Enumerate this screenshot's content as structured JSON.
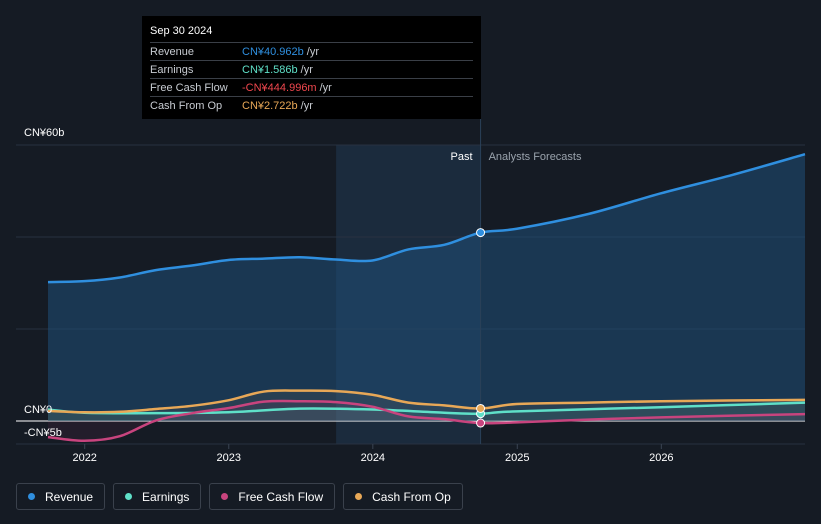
{
  "chart_data": {
    "type": "line",
    "y_top_label": "CN¥60b",
    "y_zero_label": "CN¥0",
    "y_bottom_label": "-CN¥5b",
    "ylim": [
      -5,
      60
    ],
    "x_ticks": [
      "2022",
      "2023",
      "2024",
      "2025",
      "2026"
    ],
    "period_labels": {
      "past": "Past",
      "forecast": "Analysts Forecasts"
    },
    "highlight_date": "2024-09-30",
    "series": [
      {
        "name": "Revenue",
        "color": "#2f8fdf",
        "points": [
          [
            "2021-09-30",
            30.2
          ],
          [
            "2021-12-31",
            30.4
          ],
          [
            "2022-03-31",
            31.2
          ],
          [
            "2022-06-30",
            32.8
          ],
          [
            "2022-09-30",
            33.8
          ],
          [
            "2022-12-31",
            35.0
          ],
          [
            "2023-03-31",
            35.3
          ],
          [
            "2023-06-30",
            35.6
          ],
          [
            "2023-09-30",
            35.1
          ],
          [
            "2023-12-31",
            34.9
          ],
          [
            "2024-03-31",
            37.3
          ],
          [
            "2024-06-30",
            38.3
          ],
          [
            "2024-09-30",
            40.962
          ],
          [
            "2024-12-31",
            41.8
          ],
          [
            "2025-06-30",
            45.0
          ],
          [
            "2025-12-31",
            49.5
          ],
          [
            "2026-06-30",
            53.5
          ],
          [
            "2026-12-31",
            58.0
          ]
        ]
      },
      {
        "name": "Earnings",
        "color": "#5fe0c8",
        "points": [
          [
            "2021-09-30",
            2.5
          ],
          [
            "2021-12-31",
            1.8
          ],
          [
            "2022-06-30",
            1.7
          ],
          [
            "2022-12-31",
            1.9
          ],
          [
            "2023-06-30",
            2.7
          ],
          [
            "2023-12-31",
            2.5
          ],
          [
            "2024-06-30",
            1.8
          ],
          [
            "2024-09-30",
            1.586
          ],
          [
            "2024-12-31",
            2.1
          ],
          [
            "2025-12-31",
            3.0
          ],
          [
            "2026-12-31",
            4.0
          ]
        ]
      },
      {
        "name": "Free Cash Flow",
        "color": "#c8447e",
        "points": [
          [
            "2021-09-30",
            -3.5
          ],
          [
            "2021-12-31",
            -4.3
          ],
          [
            "2022-03-31",
            -3.3
          ],
          [
            "2022-06-30",
            0.1
          ],
          [
            "2022-09-30",
            1.7
          ],
          [
            "2022-12-31",
            2.8
          ],
          [
            "2023-03-31",
            4.2
          ],
          [
            "2023-06-30",
            4.3
          ],
          [
            "2023-09-30",
            4.1
          ],
          [
            "2023-12-31",
            3.1
          ],
          [
            "2024-03-31",
            1.0
          ],
          [
            "2024-06-30",
            0.4
          ],
          [
            "2024-09-30",
            -0.444996
          ],
          [
            "2024-12-31",
            -0.3
          ],
          [
            "2025-06-30",
            0.3
          ],
          [
            "2025-12-31",
            0.8
          ],
          [
            "2026-12-31",
            1.5
          ]
        ]
      },
      {
        "name": "Cash From Op",
        "color": "#e8a857",
        "points": [
          [
            "2021-09-30",
            2.2
          ],
          [
            "2021-12-31",
            1.9
          ],
          [
            "2022-03-31",
            2.0
          ],
          [
            "2022-06-30",
            2.6
          ],
          [
            "2022-09-30",
            3.3
          ],
          [
            "2022-12-31",
            4.5
          ],
          [
            "2023-03-31",
            6.4
          ],
          [
            "2023-06-30",
            6.6
          ],
          [
            "2023-09-30",
            6.5
          ],
          [
            "2023-12-31",
            5.7
          ],
          [
            "2024-03-31",
            4.0
          ],
          [
            "2024-06-30",
            3.4
          ],
          [
            "2024-09-30",
            2.722
          ],
          [
            "2024-12-31",
            3.7
          ],
          [
            "2025-06-30",
            4.0
          ],
          [
            "2025-12-31",
            4.3
          ],
          [
            "2026-12-31",
            4.6
          ]
        ]
      }
    ]
  },
  "tooltip": {
    "date": "Sep 30 2024",
    "rows": [
      {
        "name": "Revenue",
        "value": "CN¥40.962b",
        "unit": "/yr",
        "color": "#2f8fdf"
      },
      {
        "name": "Earnings",
        "value": "CN¥1.586b",
        "unit": "/yr",
        "color": "#5fe0c8"
      },
      {
        "name": "Free Cash Flow",
        "value": "-CN¥444.996m",
        "unit": "/yr",
        "color": "#f0474e"
      },
      {
        "name": "Cash From Op",
        "value": "CN¥2.722b",
        "unit": "/yr",
        "color": "#e8a857"
      }
    ]
  },
  "legend": [
    {
      "label": "Revenue",
      "color": "#2f8fdf"
    },
    {
      "label": "Earnings",
      "color": "#5fe0c8"
    },
    {
      "label": "Free Cash Flow",
      "color": "#c8447e"
    },
    {
      "label": "Cash From Op",
      "color": "#e8a857"
    }
  ]
}
